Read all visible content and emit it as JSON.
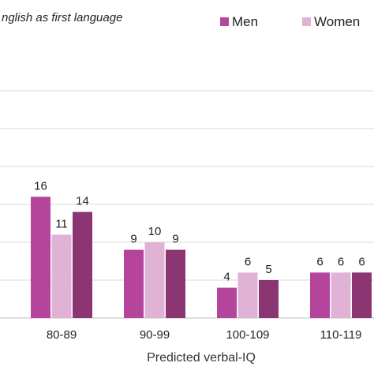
{
  "chart_data": {
    "type": "bar",
    "subtitle": "nglish as first language",
    "xlabel": "Predicted verbal-IQ",
    "ylabel": "",
    "categories": [
      "80-89",
      "90-99",
      "100-109",
      "110-119"
    ],
    "ylim": [
      0,
      34
    ],
    "grid": true,
    "legend_position": "top-right",
    "legend": [
      "Men",
      "Women"
    ],
    "series": [
      {
        "name": "Men",
        "color": "#b5449c",
        "values": [
          16,
          9,
          4,
          6
        ]
      },
      {
        "name": "Women",
        "color": "#e0b3d6",
        "values": [
          11,
          10,
          6,
          6
        ]
      },
      {
        "color": "#8b3573",
        "values": [
          14,
          9,
          5,
          6
        ]
      }
    ]
  }
}
